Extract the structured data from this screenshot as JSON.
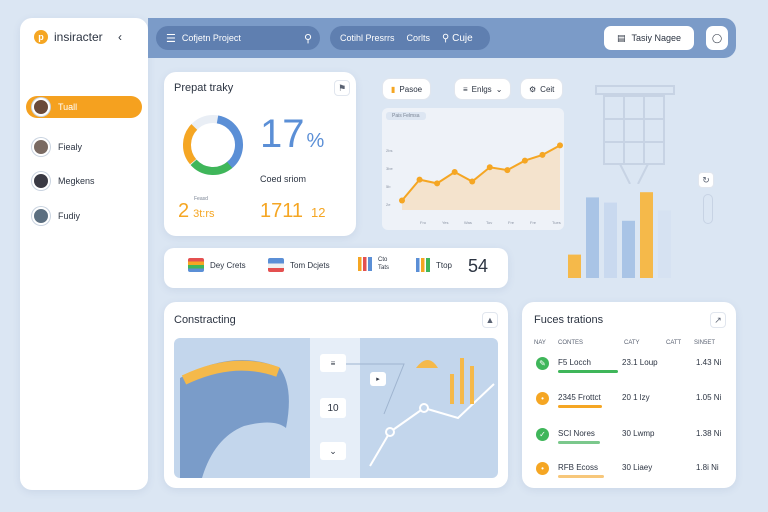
{
  "app": {
    "title": "insiracter"
  },
  "sidebar": {
    "items": [
      {
        "label": "Tuall"
      },
      {
        "label": "Fiealy"
      },
      {
        "label": "Megkens"
      },
      {
        "label": "Fudiy"
      }
    ]
  },
  "header": {
    "project_label": "Cofjetn Project",
    "nav_a": "Cotihl Presrrs",
    "nav_b": "Corlts",
    "nav_c": "Cuje",
    "action_button": "Tasiy Nagee"
  },
  "project_card": {
    "title": "Prepat traky",
    "percent_value": "17",
    "percent_sign": "%",
    "caption": "Coed sriom",
    "stat1_label": "Feasd",
    "stat1_value": "2",
    "stat1_suffix": "3t:rs",
    "stat2_value": "1711",
    "stat2_suffix": "12"
  },
  "chips": {
    "a": "Pasoe",
    "b": "Enlgs",
    "c": "Ceit",
    "legend": "Pais   Felmsa"
  },
  "line_chart": {
    "ytick": [
      "2bs",
      "3be",
      "5b",
      "2e"
    ],
    "xtick": [
      "Fro",
      "Yes",
      "Was",
      "Tov",
      "Fre",
      "Fre",
      "Tues"
    ]
  },
  "chart_data": {
    "type": "area",
    "values": [
      10,
      32,
      28,
      40,
      30,
      45,
      42,
      52,
      58,
      68
    ],
    "bars": [
      18,
      62,
      58,
      44,
      66,
      52
    ]
  },
  "metrics": {
    "m1": "Dey Crets",
    "m2": "Tom Dcjets",
    "m3_top": "Cto",
    "m3_bot": "Tats",
    "m4": "Ttop",
    "big_value": "54"
  },
  "construct": {
    "title": "Constracting",
    "step_value": "10"
  },
  "features": {
    "title": "Fuces trations",
    "col1": "NAY",
    "col2": "CONTES",
    "col3": "CATY",
    "col4": "CATT",
    "col5": "SIN5ET",
    "rows": [
      {
        "name": "F5 Locch",
        "date": "23.1 Loup",
        "value": "1.43 Ni",
        "color": "#3fb65a",
        "bar": "#3fb65a"
      },
      {
        "name": "2345 Frottct",
        "date": "20 1 lzy",
        "value": "1.05 Ni",
        "color": "#f5a623",
        "bar": "#f5a623"
      },
      {
        "name": "SCI Nores",
        "date": "30 Lwmp",
        "value": "1.38 Ni",
        "color": "#3fb65a",
        "bar": "#7bc88c"
      },
      {
        "name": "RFB Ecoss",
        "date": "30 Liaey",
        "value": "1.8i Ni",
        "color": "#f5a623",
        "bar": "#f7c77a"
      }
    ]
  },
  "colors": {
    "accent": "#f5a623",
    "primary": "#7b9bc8",
    "green": "#3fb65a"
  }
}
